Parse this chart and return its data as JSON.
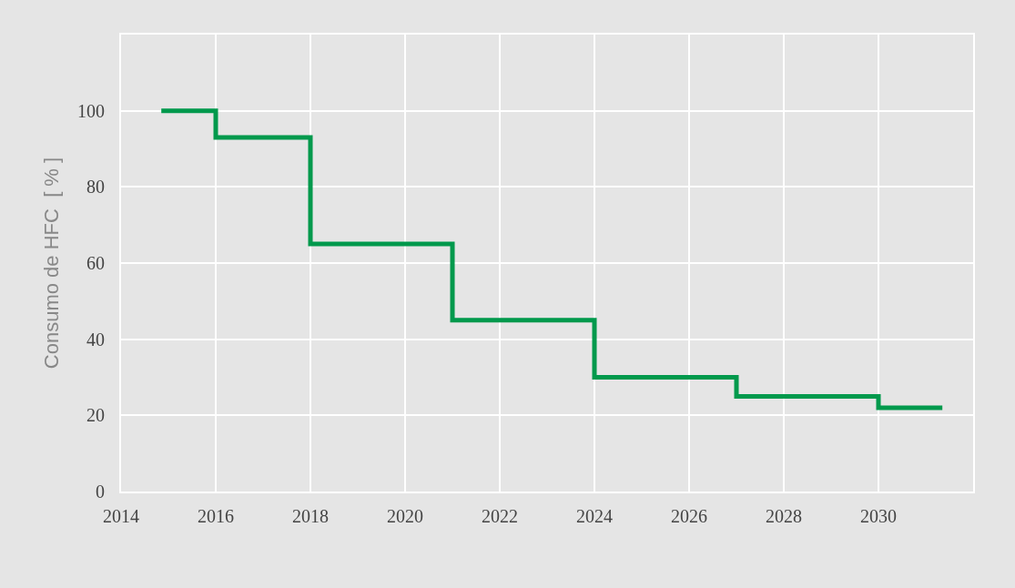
{
  "chart_data": {
    "type": "step",
    "ylabel": "Consumo de HFC  [ % ]",
    "x": [
      2014.85,
      2016,
      2018,
      2021,
      2024,
      2027,
      2030,
      2031.35
    ],
    "series": [
      {
        "color": "#00994c",
        "values": [
          100,
          93,
          65,
          45,
          30,
          25,
          22,
          22
        ]
      }
    ],
    "xlim": [
      2014,
      2032
    ],
    "xticks": [
      2014,
      2016,
      2018,
      2020,
      2022,
      2024,
      2026,
      2028,
      2030
    ],
    "ylim": [
      0,
      120
    ],
    "yticks": [
      0,
      20,
      40,
      60,
      80,
      100
    ],
    "grid": true,
    "legend": false,
    "marker": "none",
    "line_style": "solid"
  }
}
